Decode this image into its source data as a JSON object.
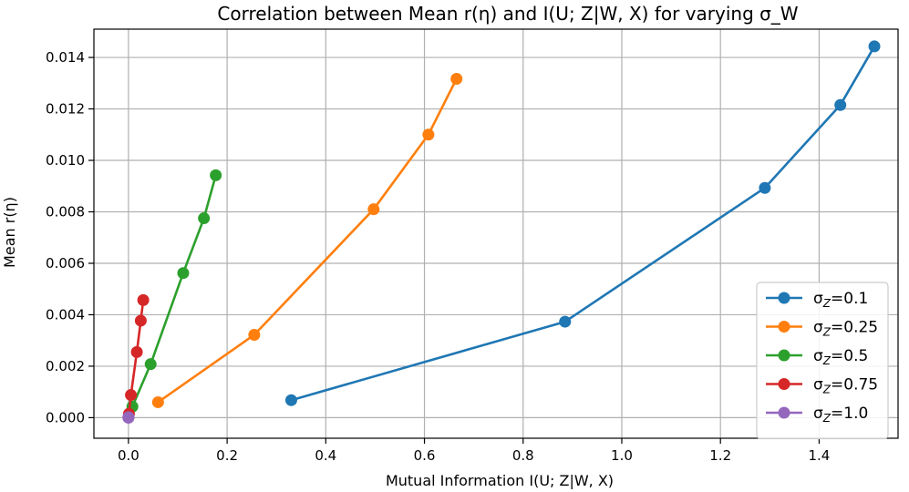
{
  "chart_data": {
    "type": "line",
    "title": "Correlation between Mean r(η) and I(U; Z|W, X) for varying σ_W",
    "xlabel": "Mutual Information I(U; Z|W, X)",
    "ylabel": "Mean r(η)",
    "xlim": [
      -0.07,
      1.56
    ],
    "ylim": [
      -0.0008,
      0.0151
    ],
    "xticks": [
      "0.0",
      "0.2",
      "0.4",
      "0.6",
      "0.8",
      "1.0",
      "1.2",
      "1.4"
    ],
    "xtick_values": [
      0.0,
      0.2,
      0.4,
      0.6,
      0.8,
      1.0,
      1.2,
      1.4
    ],
    "yticks": [
      "0.000",
      "0.002",
      "0.004",
      "0.006",
      "0.008",
      "0.010",
      "0.012",
      "0.014"
    ],
    "ytick_values": [
      0.0,
      0.002,
      0.004,
      0.006,
      0.008,
      0.01,
      0.012,
      0.014
    ],
    "grid": true,
    "legend_position": "lower-right",
    "series": [
      {
        "name": "σZ=0.1",
        "sigma_value": "0.1",
        "color": "#1f77b4",
        "x": [
          0.33,
          0.885,
          1.29,
          1.443,
          1.512
        ],
        "y": [
          0.00068,
          0.00373,
          0.00893,
          0.01215,
          0.01443
        ]
      },
      {
        "name": "σZ=0.25",
        "sigma_value": "0.25",
        "color": "#ff7f0e",
        "x": [
          0.06,
          0.255,
          0.497,
          0.608,
          0.665
        ],
        "y": [
          0.0006,
          0.00322,
          0.0081,
          0.011,
          0.01317
        ]
      },
      {
        "name": "σZ=0.5",
        "sigma_value": "0.5",
        "color": "#2ca02c",
        "x": [
          0.008,
          0.045,
          0.111,
          0.153,
          0.177
        ],
        "y": [
          0.00043,
          0.00208,
          0.00562,
          0.00775,
          0.00942
        ]
      },
      {
        "name": "σZ=0.75",
        "sigma_value": "0.75",
        "color": "#d62728",
        "x": [
          0.001,
          0.005,
          0.017,
          0.025,
          0.03
        ],
        "y": [
          0.00015,
          0.00088,
          0.00255,
          0.00377,
          0.00457
        ]
      },
      {
        "name": "σZ=1.0",
        "sigma_value": "1.0",
        "color": "#9467bd",
        "x": [
          0.0,
          0.0,
          0.0,
          0.0,
          0.0
        ],
        "y": [
          0.0,
          0.0,
          1e-05,
          1e-05,
          2e-05
        ]
      }
    ]
  }
}
